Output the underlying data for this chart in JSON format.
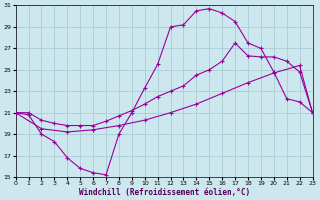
{
  "xlabel": "Windchill (Refroidissement éolien,°C)",
  "background_color": "#cce8ee",
  "grid_color": "#aaccd4",
  "line_color": "#990099",
  "xmin": 0,
  "xmax": 23,
  "ymin": 15,
  "ymax": 31,
  "yticks": [
    15,
    17,
    19,
    21,
    23,
    25,
    27,
    29,
    31
  ],
  "xticks": [
    0,
    1,
    2,
    3,
    4,
    5,
    6,
    7,
    8,
    9,
    10,
    11,
    12,
    13,
    14,
    15,
    16,
    17,
    18,
    19,
    20,
    21,
    22,
    23
  ],
  "line1_x": [
    0,
    1,
    2,
    3,
    4,
    5,
    6,
    7,
    8,
    9,
    10,
    11,
    12,
    13,
    14,
    15,
    16,
    17,
    18,
    19,
    20,
    21,
    22,
    23
  ],
  "line1_y": [
    21,
    20.8,
    19,
    18.3,
    16.8,
    15.8,
    15.4,
    15.2,
    19,
    21,
    23.3,
    25.5,
    29,
    29.2,
    30.5,
    30.7,
    30.3,
    29.5,
    27.5,
    27,
    24.8,
    22.3,
    22,
    21
  ],
  "line2_x": [
    0,
    1,
    2,
    3,
    4,
    5,
    6,
    7,
    8,
    9,
    10,
    11,
    12,
    13,
    14,
    15,
    16,
    17,
    18,
    19,
    20,
    21,
    22,
    23
  ],
  "line2_y": [
    21,
    21.0,
    20.3,
    20.0,
    19.8,
    19.8,
    19.8,
    20.2,
    20.7,
    21.2,
    21.8,
    22.5,
    23.0,
    23.5,
    24.5,
    25.0,
    25.8,
    27.5,
    26.3,
    26.2,
    26.2,
    25.8,
    24.8,
    21
  ],
  "line3_x": [
    0,
    2,
    4,
    6,
    8,
    10,
    12,
    14,
    16,
    18,
    20,
    22,
    23
  ],
  "line3_y": [
    21,
    19.5,
    19.2,
    19.4,
    19.8,
    20.3,
    21.0,
    21.8,
    22.8,
    23.8,
    24.7,
    25.4,
    21
  ]
}
